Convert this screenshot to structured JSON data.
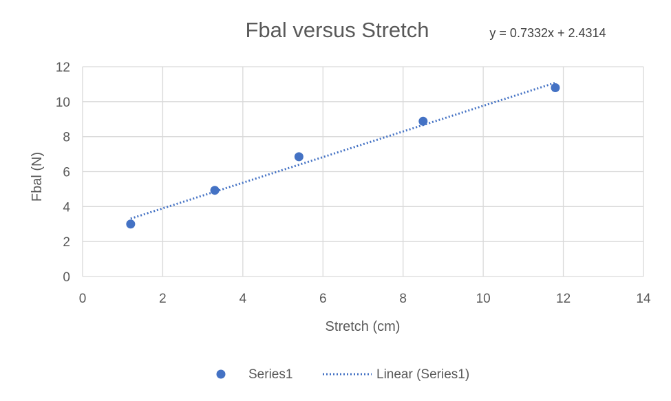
{
  "chart_data": {
    "type": "scatter",
    "title": "Fbal versus Stretch",
    "xlabel": "Stretch (cm)",
    "ylabel": "Fbal (N)",
    "xlim": [
      0,
      14
    ],
    "ylim": [
      0,
      12
    ],
    "xticks": [
      0,
      2,
      4,
      6,
      8,
      10,
      12,
      14
    ],
    "yticks": [
      0,
      2,
      4,
      6,
      8,
      10,
      12
    ],
    "grid": true,
    "legend_position": "bottom",
    "series": [
      {
        "name": "Series1",
        "color": "#4472C4",
        "x": [
          1.2,
          3.3,
          5.4,
          8.5,
          11.8
        ],
        "y": [
          3.0,
          4.93,
          6.85,
          8.88,
          10.8
        ]
      }
    ],
    "trendline": {
      "name": "Linear (Series1)",
      "equation": "y = 0.7332x + 2.4314",
      "slope": 0.7332,
      "intercept": 2.4314,
      "x_range": [
        1.2,
        11.8
      ],
      "color": "#4472C4",
      "style": "dotted"
    }
  }
}
